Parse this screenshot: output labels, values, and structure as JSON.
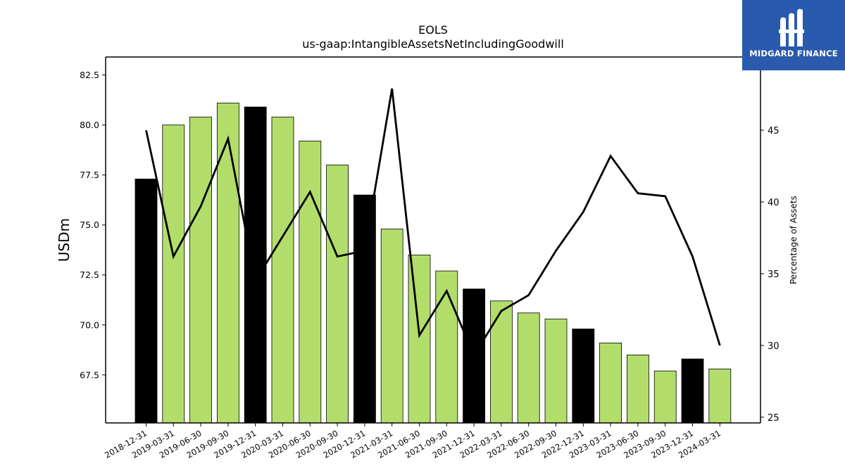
{
  "chart_data": {
    "type": "bar",
    "title": "EOLS",
    "subtitle": "us-gaap:IntangibleAssetsNetIncludingGoodwill",
    "ylabel": "USDm",
    "y2label": "Percentage of Assets",
    "ylim": [
      65.1,
      83.4
    ],
    "y2lim": [
      24.6,
      50.1
    ],
    "yticks": [
      "67.5",
      "70.0",
      "72.5",
      "75.0",
      "77.5",
      "80.0",
      "82.5"
    ],
    "y2ticks": [
      "25",
      "30",
      "35",
      "40",
      "45"
    ],
    "categories": [
      "2018-12-31",
      "2019-03-31",
      "2019-06-30",
      "2019-09-30",
      "2019-12-31",
      "2020-03-31",
      "2020-06-30",
      "2020-09-30",
      "2020-12-31",
      "2021-03-31",
      "2021-06-30",
      "2021-09-30",
      "2021-12-31",
      "2022-03-31",
      "2022-06-30",
      "2022-09-30",
      "2022-12-31",
      "2023-03-31",
      "2023-06-30",
      "2023-09-30",
      "2023-12-31",
      "2024-03-31"
    ],
    "series": [
      {
        "kind": "bar",
        "axis": "left",
        "values": [
          77.3,
          80.0,
          80.4,
          81.1,
          80.9,
          80.4,
          79.2,
          78.0,
          76.5,
          74.8,
          73.5,
          72.7,
          71.8,
          71.2,
          70.6,
          70.3,
          69.8,
          69.1,
          68.5,
          67.7,
          68.3,
          67.8
        ],
        "colors": [
          "#000000",
          "#b2dd6b",
          "#b2dd6b",
          "#b2dd6b",
          "#000000",
          "#b2dd6b",
          "#b2dd6b",
          "#b2dd6b",
          "#000000",
          "#b2dd6b",
          "#b2dd6b",
          "#b2dd6b",
          "#000000",
          "#b2dd6b",
          "#b2dd6b",
          "#b2dd6b",
          "#000000",
          "#b2dd6b",
          "#b2dd6b",
          "#b2dd6b",
          "#000000",
          "#b2dd6b"
        ]
      },
      {
        "kind": "line",
        "axis": "right",
        "color": "#000000",
        "values": [
          45.0,
          36.2,
          39.7,
          44.4,
          34.5,
          37.6,
          40.7,
          36.2,
          36.6,
          47.9,
          30.7,
          33.8,
          29.3,
          32.4,
          33.5,
          36.6,
          39.3,
          43.2,
          40.6,
          40.4,
          36.2,
          30.0
        ]
      }
    ],
    "grid": false,
    "legend": "none"
  },
  "logo": {
    "text": "MIDGARD FINANCE",
    "background": "#2a5aad",
    "icon": "midgard-logo-icon"
  }
}
